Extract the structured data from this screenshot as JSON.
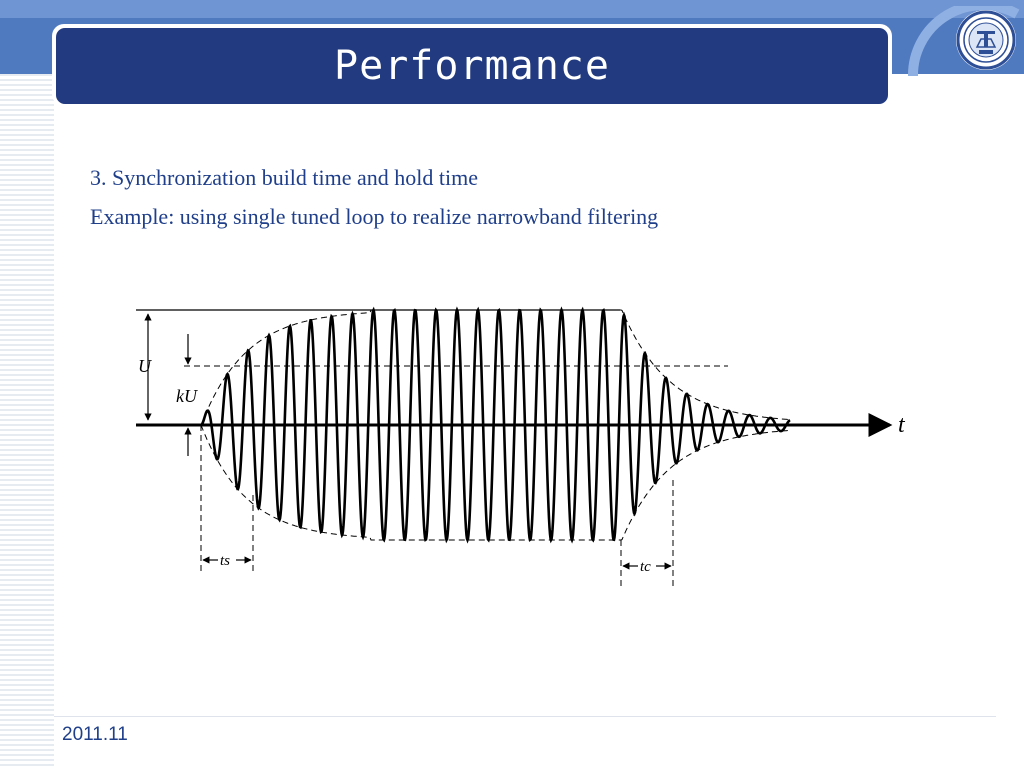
{
  "slide": {
    "title": "Performance",
    "lines": [
      "3. Synchronization build time and hold time",
      "Example: using single tuned loop to realize narrowband filtering"
    ],
    "footer": "2011.11"
  },
  "diagram": {
    "labels": {
      "U": "U",
      "kU": "kU",
      "t": "t",
      "ts": "ts",
      "tc": "tc"
    }
  },
  "colors": {
    "header_band": "#4f7ac0",
    "title_bar": "#213a80",
    "text": "#1f3f8a"
  },
  "icons": {
    "logo": "university-seal-icon"
  }
}
